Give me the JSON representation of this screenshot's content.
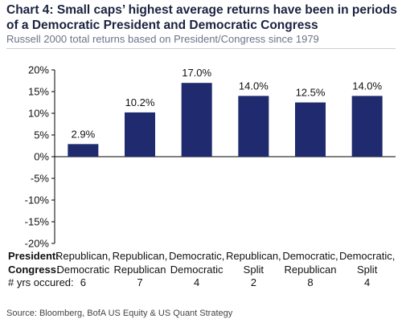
{
  "header": {
    "title": "Chart 4: Small caps’ highest average returns have been in periods of a Democratic President and Democratic Congress",
    "subtitle": "Russell 2000 total returns based on President/Congress since 1979"
  },
  "footer": {
    "source": "Source: Bloomberg, BofA US Equity & US Quant Strategy"
  },
  "chart_data": {
    "type": "bar",
    "title": "Chart 4: Small caps’ highest average returns have been in periods of a Democratic President and Democratic Congress",
    "subtitle": "Russell 2000 total returns based on President/Congress since 1979",
    "row_labels": [
      "President:",
      "Congress:",
      "# yrs occured:"
    ],
    "categories": [
      {
        "president": "Republican,",
        "congress": "Democratic",
        "years": "6"
      },
      {
        "president": "Republican,",
        "congress": "Republican",
        "years": "7"
      },
      {
        "president": "Democratic,",
        "congress": "Democratic",
        "years": "4"
      },
      {
        "president": "Republican,",
        "congress": "Split",
        "years": "2"
      },
      {
        "president": "Democratic,",
        "congress": "Republican",
        "years": "8"
      },
      {
        "president": "Democratic,",
        "congress": "Split",
        "years": "4"
      }
    ],
    "values": [
      2.9,
      10.2,
      17.0,
      14.0,
      12.5,
      14.0
    ],
    "data_labels": [
      "2.9%",
      "10.2%",
      "17.0%",
      "14.0%",
      "12.5%",
      "14.0%"
    ],
    "ylim": [
      -20,
      20
    ],
    "yticks": [
      20,
      15,
      10,
      5,
      0,
      -5,
      -10,
      -15,
      -20
    ],
    "ytick_labels": [
      "20%",
      "15%",
      "10%",
      "5%",
      "0%",
      "-5%",
      "-10%",
      "-15%",
      "-20%"
    ],
    "grid": false,
    "colors": {
      "bar": "#1f2b6e",
      "axis": "#000000"
    }
  }
}
